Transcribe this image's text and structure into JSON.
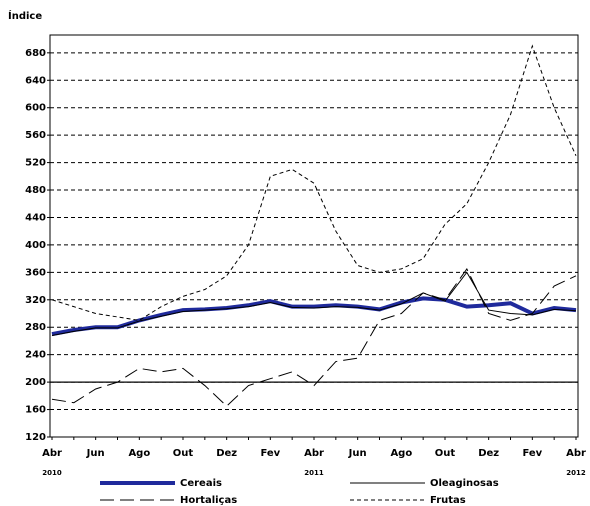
{
  "chart_data": {
    "type": "line",
    "ylabel": "Índice",
    "categories": [
      "Abr",
      null,
      "Jun",
      null,
      "Ago",
      null,
      "Out",
      null,
      "Dez",
      null,
      "Fev",
      null,
      "Abr",
      null,
      "Jun",
      null,
      "Ago",
      null,
      "Out",
      null,
      "Dez",
      null,
      "Fev",
      null,
      "Abr"
    ],
    "years": [
      "2010",
      "2011",
      "2012"
    ],
    "ylim": [
      120,
      706
    ],
    "yticks": [
      120,
      160,
      200,
      240,
      280,
      320,
      360,
      400,
      440,
      480,
      520,
      560,
      600,
      640,
      680
    ],
    "grid": true,
    "reference_line": 200,
    "series": [
      {
        "name": "Cereais",
        "color": "#1f2a9c",
        "dash": "solid",
        "width": 4,
        "values": [
          270,
          276,
          280,
          280,
          290,
          298,
          305,
          306,
          308,
          312,
          318,
          310,
          310,
          312,
          310,
          306,
          316,
          322,
          320,
          310,
          312,
          315,
          300,
          308,
          305
        ]
      },
      {
        "name": "Oleaginosas",
        "color": "#000000",
        "dash": "solid",
        "width": 1,
        "values": [
          268,
          274,
          279,
          279,
          289,
          296,
          303,
          305,
          307,
          310,
          316,
          309,
          308,
          310,
          309,
          305,
          314,
          330,
          318,
          360,
          305,
          300,
          298,
          306,
          304
        ]
      },
      {
        "name": "Hortaliças",
        "color": "#000000",
        "dash": "long",
        "width": 1,
        "values": [
          175,
          170,
          190,
          200,
          220,
          215,
          220,
          195,
          165,
          195,
          205,
          215,
          195,
          230,
          235,
          290,
          300,
          330,
          320,
          365,
          300,
          290,
          300,
          340,
          355
        ]
      },
      {
        "name": "Frutas",
        "color": "#000000",
        "dash": "short",
        "width": 1,
        "values": [
          320,
          310,
          300,
          295,
          290,
          310,
          325,
          335,
          355,
          400,
          500,
          510,
          490,
          420,
          370,
          360,
          365,
          380,
          430,
          460,
          520,
          590,
          690,
          600,
          530
        ]
      }
    ]
  }
}
